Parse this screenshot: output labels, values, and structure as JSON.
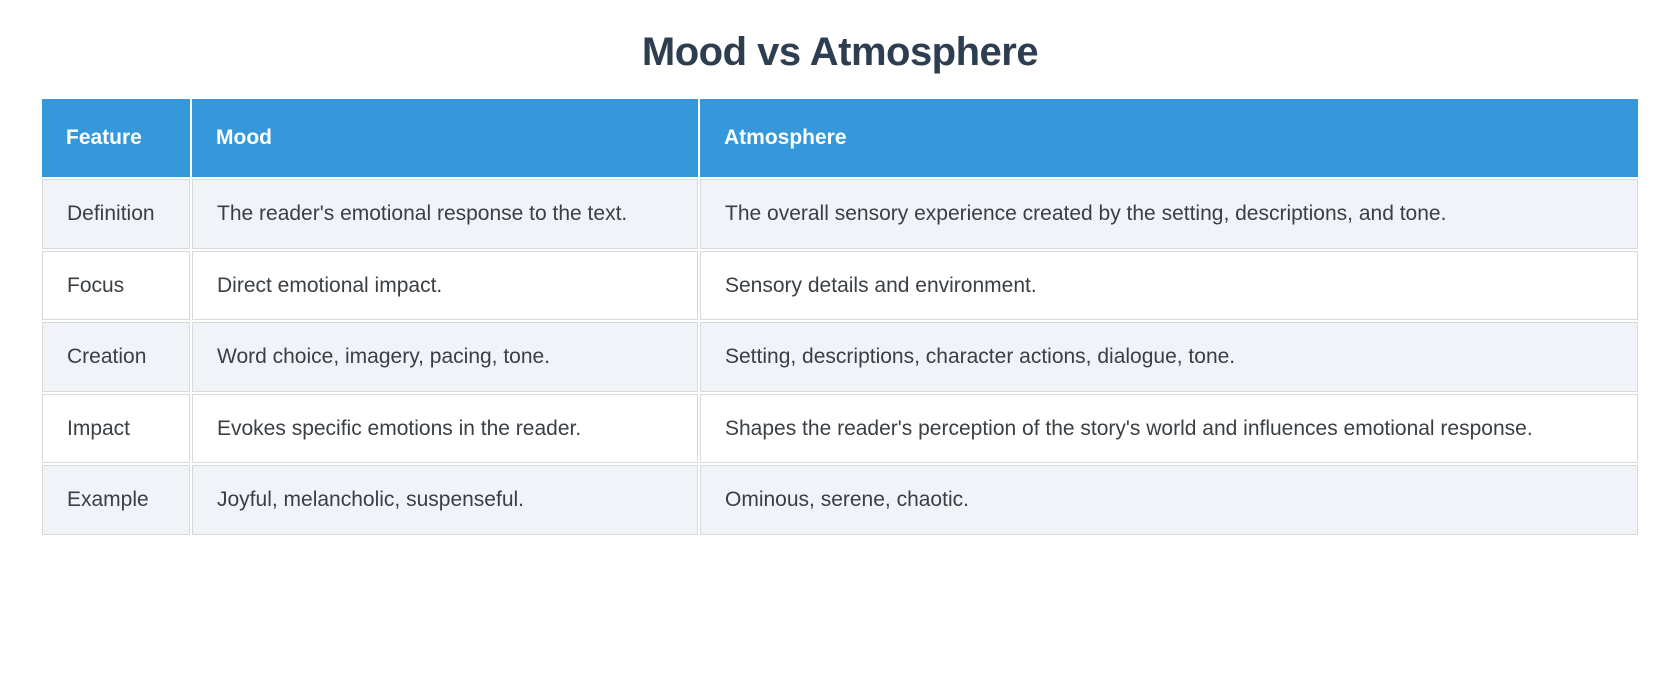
{
  "page": {
    "title": "Mood vs Atmosphere"
  },
  "table": {
    "headers": [
      "Feature",
      "Mood",
      "Atmosphere"
    ],
    "rows": [
      {
        "feature": "Definition",
        "mood": "The reader's emotional response to the text.",
        "atmosphere": "The overall sensory experience created by the setting, descriptions, and tone."
      },
      {
        "feature": "Focus",
        "mood": "Direct emotional impact.",
        "atmosphere": "Sensory details and environment."
      },
      {
        "feature": "Creation",
        "mood": "Word choice, imagery, pacing, tone.",
        "atmosphere": "Setting, descriptions, character actions, dialogue, tone."
      },
      {
        "feature": "Impact",
        "mood": "Evokes specific emotions in the reader.",
        "atmosphere": "Shapes the reader's perception of the story's world and influences emotional response."
      },
      {
        "feature": "Example",
        "mood": "Joyful, melancholic, suspenseful.",
        "atmosphere": "Ominous, serene, chaotic."
      }
    ],
    "colors": {
      "header_bg": "#3498db",
      "header_text": "#ffffff",
      "stripe_bg": "#f0f3f8",
      "row_bg": "#ffffff",
      "border": "#d9d9d9",
      "text": "#3a3f44",
      "title": "#2c3e50"
    }
  }
}
